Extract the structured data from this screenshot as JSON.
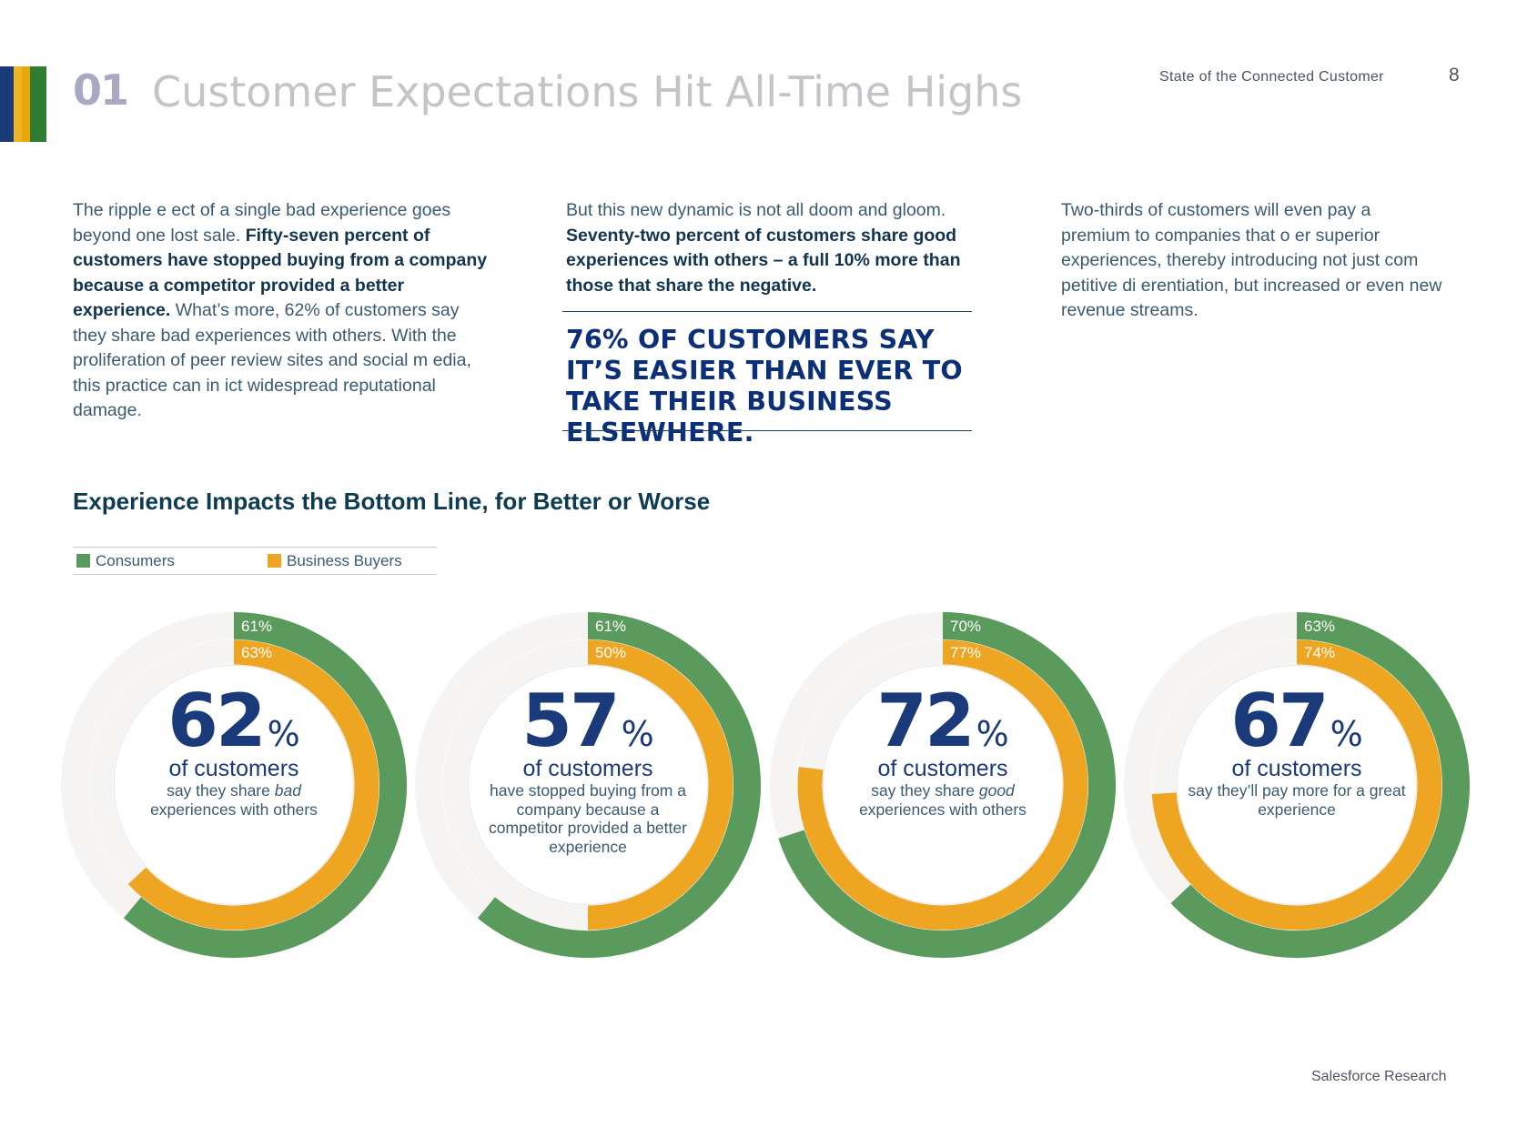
{
  "header": {
    "section_number": "01",
    "title": "Customer Expectations Hit All-Time Highs",
    "report_name": "State of the Connected Customer",
    "page_number": "8",
    "brand_colors": [
      "#1b3a7a",
      "#f0b323",
      "#e8a80a",
      "#2e7d32"
    ]
  },
  "body": {
    "col1": {
      "intro": "The ripple e  ect of a single bad experience goes beyond one lost sale. ",
      "bold": "Fifty-seven percent of customers have stopped buying from a company because a competitor provided a better experience.",
      "rest": " What’s more, 62% of customers say they share bad experiences with others. With the proliferation of peer review sites and social m edia, this practice can in  ict widespread reputational damage."
    },
    "col2": {
      "intro": "But this new dynamic is not all doom and gloom. ",
      "bold": "Seventy-two percent of customers share good experiences with others – a full 10% more than those that share the negative."
    },
    "col3": {
      "text": "Two-thirds of customers will even pay a premium  to companies that o   er superior experiences, thereby introducing not just com petitive di   erentiation, but increased or even new revenue streams."
    },
    "callout": "76% of customers say it’s easier than ever to take their business elsewhere."
  },
  "chart_data": {
    "type": "donut",
    "title": "Experience Impacts the Bottom Line, for Better or Worse",
    "legend": [
      {
        "name": "Consumers",
        "color": "#5a9a5c"
      },
      {
        "name": "Business Buyers",
        "color": "#eea521"
      }
    ],
    "track_color": "#f5f4f3",
    "charts": [
      {
        "headline_value": "62",
        "unit": "%",
        "subhead": "of customers",
        "description_parts": [
          "say they share ",
          "bad",
          " experiences with others"
        ],
        "consumers": 61,
        "business_buyers": 63
      },
      {
        "headline_value": "57",
        "unit": "%",
        "subhead": "of customers",
        "description_parts": [
          "have stopped buying from a company because a competitor provided a better experience",
          "",
          ""
        ],
        "consumers": 61,
        "business_buyers": 50
      },
      {
        "headline_value": "72",
        "unit": "%",
        "subhead": "of customers",
        "description_parts": [
          "say they share ",
          "good",
          " experiences with others"
        ],
        "consumers": 70,
        "business_buyers": 77
      },
      {
        "headline_value": "67",
        "unit": "%",
        "subhead": "of customers",
        "description_parts": [
          "say they’ll pay more for a great experience",
          "",
          ""
        ],
        "consumers": 63,
        "business_buyers": 74
      }
    ]
  },
  "footer": {
    "text": "Salesforce Research"
  }
}
